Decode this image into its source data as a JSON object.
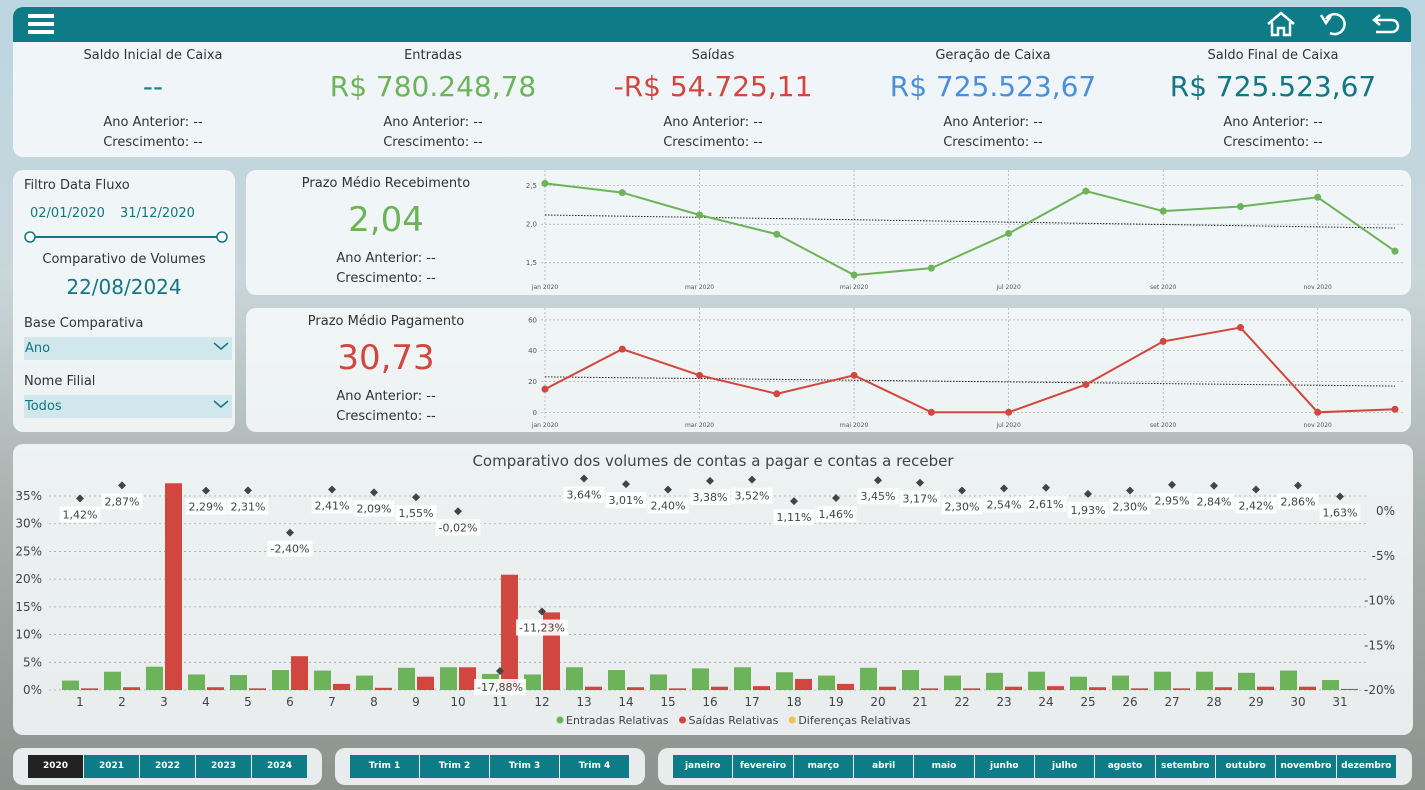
{
  "kpis": [
    {
      "title": "Saldo Inicial de Caixa",
      "value": "--",
      "color": "#1d7f8a",
      "prev": "Ano Anterior: --",
      "growth": "Crescimento: --"
    },
    {
      "title": "Entradas",
      "value": "R$ 780.248,78",
      "color": "#6db35a",
      "prev": "Ano Anterior: --",
      "growth": "Crescimento: --"
    },
    {
      "title": "Saídas",
      "value": "-R$ 54.725,11",
      "color": "#d1473f",
      "prev": "Ano Anterior: --",
      "growth": "Crescimento: --"
    },
    {
      "title": "Geração de Caixa",
      "value": "R$ 725.523,67",
      "color": "#4a8fd9",
      "prev": "Ano Anterior: --",
      "growth": "Crescimento: --"
    },
    {
      "title": "Saldo Final de Caixa",
      "value": "R$ 725.523,67",
      "color": "#137683",
      "prev": "Ano Anterior: --",
      "growth": "Crescimento: --"
    }
  ],
  "filters": {
    "date_title": "Filtro Data Fluxo",
    "start": "02/01/2020",
    "end": "31/12/2020",
    "compare_title": "Comparativo de Volumes",
    "compare_date": "22/08/2024",
    "base_title": "Base Comparativa",
    "base_value": "Ano",
    "branch_title": "Nome Filial",
    "branch_value": "Todos"
  },
  "chart_data": [
    {
      "type": "line",
      "title": "Prazo Médio Recebimento",
      "kpi": "2,04",
      "annotations": [
        "Ano Anterior: --",
        "Crescimento: --"
      ],
      "color": "#6db35a",
      "categories": [
        "jan 2020",
        null,
        "mar 2020",
        null,
        "mai 2020",
        null,
        "jul 2020",
        null,
        "set 2020",
        null,
        "nov 2020",
        null
      ],
      "values": [
        2.53,
        2.41,
        2.12,
        1.87,
        1.34,
        1.43,
        1.88,
        2.43,
        2.17,
        2.23,
        2.35,
        1.65
      ],
      "trend": [
        2.12,
        1.95
      ],
      "ylim": [
        1.25,
        2.6
      ],
      "yticks": [
        {
          "value": 1.5,
          "label": "1,5"
        },
        {
          "value": 2.0,
          "label": "2,0"
        },
        {
          "value": 2.5,
          "label": "2,5"
        }
      ],
      "grid": true
    },
    {
      "type": "line",
      "title": "Prazo Médio Pagamento",
      "kpi": "30,73",
      "annotations": [
        "Ano Anterior: --",
        "Crescimento: --"
      ],
      "color": "#d1473f",
      "categories": [
        "jan 2020",
        null,
        "mar 2020",
        null,
        "mai 2020",
        null,
        "jul 2020",
        null,
        "set 2020",
        null,
        "nov 2020",
        null
      ],
      "values": [
        15,
        41,
        24,
        12,
        24,
        0,
        0,
        18,
        46,
        55,
        0,
        2
      ],
      "trend": [
        23,
        17
      ],
      "ylim": [
        -5,
        62.5
      ],
      "yticks": [
        0,
        20,
        40,
        60
      ],
      "grid": true
    },
    {
      "type": "bar",
      "title": "Comparativo dos volumes de contas a pagar e contas a receber",
      "categories": [
        "1",
        "2",
        "3",
        "4",
        "5",
        "6",
        "7",
        "8",
        "9",
        "10",
        "11",
        "12",
        "13",
        "14",
        "15",
        "16",
        "17",
        "18",
        "19",
        "20",
        "21",
        "22",
        "23",
        "24",
        "25",
        "26",
        "27",
        "28",
        "29",
        "30",
        "31"
      ],
      "series": [
        {
          "name": "Entradas Relativas",
          "color": "#6db35a",
          "values": [
            1.7,
            3.3,
            4.2,
            2.8,
            2.7,
            3.6,
            3.5,
            2.6,
            4.0,
            4.1,
            2.9,
            2.8,
            4.1,
            3.6,
            2.8,
            3.9,
            4.1,
            3.2,
            2.6,
            4.0,
            3.6,
            2.6,
            3.1,
            3.3,
            2.4,
            2.6,
            3.3,
            3.3,
            3.1,
            3.5,
            1.8
          ]
        },
        {
          "name": "Saídas Relativas",
          "color": "#d1473f",
          "values": [
            0.3,
            0.5,
            37.3,
            0.5,
            0.3,
            6.1,
            1.1,
            0.4,
            2.4,
            4.1,
            20.8,
            14.0,
            0.6,
            0.5,
            0.3,
            0.6,
            0.7,
            2.0,
            1.1,
            0.6,
            0.3,
            0.3,
            0.6,
            0.7,
            0.5,
            0.3,
            0.3,
            0.5,
            0.6,
            0.6,
            0.2
          ]
        },
        {
          "name": "Diferenças Relativas",
          "color": "#f2c14e",
          "axis": "y2",
          "values": [
            1.42,
            2.87,
            null,
            2.29,
            2.31,
            -2.4,
            2.41,
            2.09,
            1.55,
            -0.02,
            -17.88,
            -11.23,
            3.64,
            3.01,
            2.4,
            3.38,
            3.52,
            1.11,
            1.46,
            3.45,
            3.17,
            2.3,
            2.54,
            2.61,
            1.93,
            2.3,
            2.95,
            2.84,
            2.42,
            2.86,
            1.63
          ],
          "value_labels": [
            "1,42%",
            "2,87%",
            null,
            "2,29%",
            "2,31%",
            "-2,40%",
            "2,41%",
            "2,09%",
            "1,55%",
            "-0,02%",
            "-17,88%",
            "-11,23%",
            "3,64%",
            "3,01%",
            "2,40%",
            "3,38%",
            "3,52%",
            "1,11%",
            "1,46%",
            "3,45%",
            "3,17%",
            "2,30%",
            "2,54%",
            "2,61%",
            "1,93%",
            "2,30%",
            "2,95%",
            "2,84%",
            "2,42%",
            "2,86%",
            "1,63%"
          ]
        }
      ],
      "ylim": [
        0,
        38.25
      ],
      "yticks": [
        {
          "value": 0,
          "label": "0%"
        },
        {
          "value": 5,
          "label": "5%"
        },
        {
          "value": 10,
          "label": "10%"
        },
        {
          "value": 15,
          "label": "15%"
        },
        {
          "value": 20,
          "label": "20%"
        },
        {
          "value": 25,
          "label": "25%"
        },
        {
          "value": 30,
          "label": "30%"
        },
        {
          "value": 35,
          "label": "35%"
        }
      ],
      "y2lim": [
        -20,
        3.7
      ],
      "y2ticks": [
        {
          "value": 0,
          "label": "0%"
        },
        {
          "value": -5,
          "label": "-5%"
        },
        {
          "value": -10,
          "label": "-10%"
        },
        {
          "value": -15,
          "label": "-15%"
        },
        {
          "value": -20,
          "label": "-20%"
        }
      ],
      "grid": true,
      "legend": "bottom"
    }
  ],
  "slicers": {
    "years": [
      "2020",
      "2021",
      "2022",
      "2023",
      "2024"
    ],
    "selected_year": "2020",
    "quarters": [
      "Trim 1",
      "Trim 2",
      "Trim 3",
      "Trim 4"
    ],
    "months": [
      "janeiro",
      "fevereiro",
      "março",
      "abril",
      "maio",
      "junho",
      "julho",
      "agosto",
      "setembro",
      "outubro",
      "novembro",
      "dezembro"
    ]
  }
}
